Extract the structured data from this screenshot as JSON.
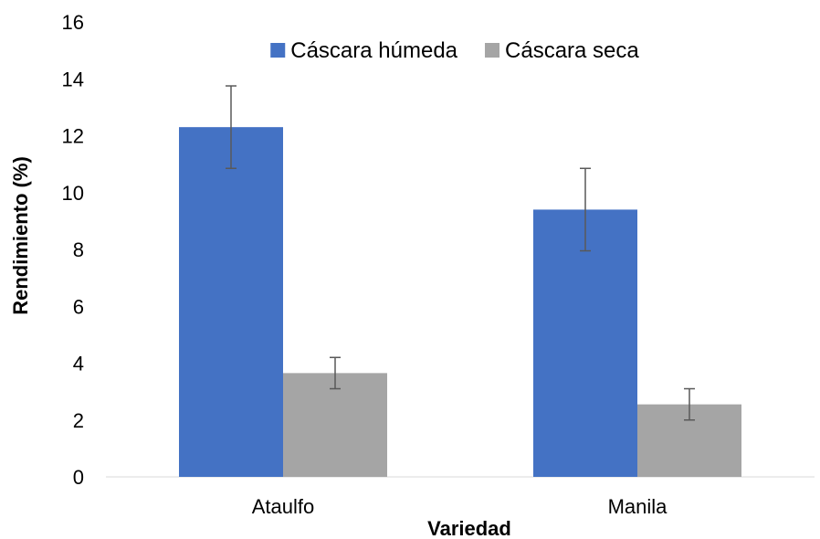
{
  "chart_data": {
    "type": "bar",
    "categories": [
      "Ataulfo",
      "Manila"
    ],
    "series": [
      {
        "name": "Cáscara húmeda",
        "values": [
          12.3,
          9.4
        ],
        "errors": [
          1.45,
          1.45
        ],
        "color": "#4472C4"
      },
      {
        "name": "Cáscara seca",
        "values": [
          3.65,
          2.55
        ],
        "errors": [
          0.55,
          0.55
        ],
        "color": "#A5A5A5"
      }
    ],
    "xlabel": "Variedad",
    "ylabel": "Rendimiento (%)",
    "ylim": [
      0,
      16
    ],
    "yticks": [
      0,
      2,
      4,
      6,
      8,
      10,
      12,
      14,
      16
    ],
    "legend_position": "top",
    "grid": false,
    "error_bar_color": "#595959"
  }
}
